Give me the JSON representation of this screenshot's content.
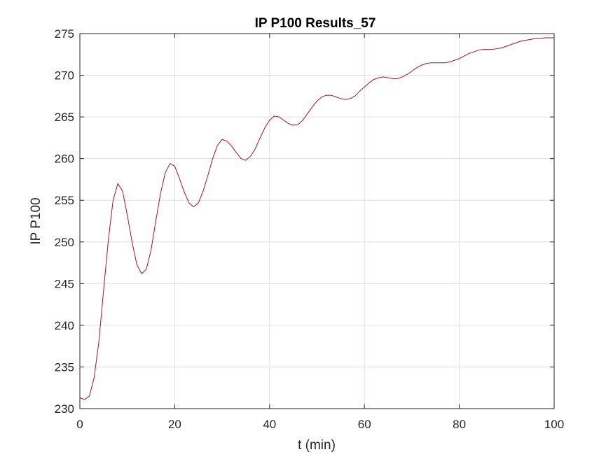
{
  "chart_data": {
    "type": "line",
    "title": "IP P100 Results_57",
    "xlabel": "t (min)",
    "ylabel": "IP P100",
    "xlim": [
      0,
      100
    ],
    "ylim": [
      230,
      275
    ],
    "xticks": [
      0,
      20,
      40,
      60,
      80,
      100
    ],
    "yticks": [
      230,
      235,
      240,
      245,
      250,
      255,
      260,
      265,
      270,
      275
    ],
    "grid": true,
    "series": [
      {
        "color": "#a2142f",
        "x": [
          0,
          1,
          2,
          3,
          4,
          5,
          6,
          7,
          8,
          9,
          10,
          11,
          12,
          13,
          14,
          15,
          16,
          17,
          18,
          19,
          20,
          21,
          22,
          23,
          24,
          25,
          26,
          27,
          28,
          29,
          30,
          31,
          32,
          33,
          34,
          35,
          36,
          37,
          38,
          39,
          40,
          41,
          42,
          43,
          44,
          45,
          46,
          47,
          48,
          49,
          50,
          51,
          52,
          53,
          54,
          55,
          56,
          57,
          58,
          59,
          60,
          61,
          62,
          63,
          64,
          65,
          66,
          67,
          68,
          69,
          70,
          71,
          72,
          73,
          74,
          75,
          76,
          77,
          78,
          79,
          80,
          81,
          82,
          83,
          84,
          85,
          86,
          87,
          88,
          89,
          90,
          91,
          92,
          93,
          94,
          95,
          96,
          97,
          98,
          99,
          100
        ],
        "y": [
          231.3,
          231.1,
          231.5,
          233.7,
          238.0,
          244.2,
          250.2,
          255.0,
          257.0,
          256.1,
          253.2,
          250.0,
          247.3,
          246.2,
          246.7,
          249.0,
          252.5,
          255.8,
          258.3,
          259.4,
          259.1,
          257.6,
          256.0,
          254.7,
          254.2,
          254.7,
          256.1,
          258.0,
          260.0,
          261.6,
          262.3,
          262.1,
          261.5,
          260.7,
          260.0,
          259.8,
          260.3,
          261.2,
          262.5,
          263.7,
          264.6,
          265.1,
          265.0,
          264.6,
          264.2,
          264.0,
          264.1,
          264.6,
          265.4,
          266.2,
          266.9,
          267.4,
          267.6,
          267.6,
          267.4,
          267.2,
          267.1,
          267.2,
          267.5,
          268.1,
          268.6,
          269.1,
          269.5,
          269.7,
          269.8,
          269.7,
          269.6,
          269.6,
          269.8,
          270.1,
          270.5,
          270.9,
          271.2,
          271.4,
          271.5,
          271.5,
          271.5,
          271.5,
          271.6,
          271.8,
          272.0,
          272.3,
          272.6,
          272.8,
          273.0,
          273.1,
          273.1,
          273.1,
          273.2,
          273.3,
          273.5,
          273.7,
          273.9,
          274.1,
          274.2,
          274.3,
          274.4,
          274.4,
          274.5,
          274.5,
          274.5
        ]
      }
    ]
  }
}
